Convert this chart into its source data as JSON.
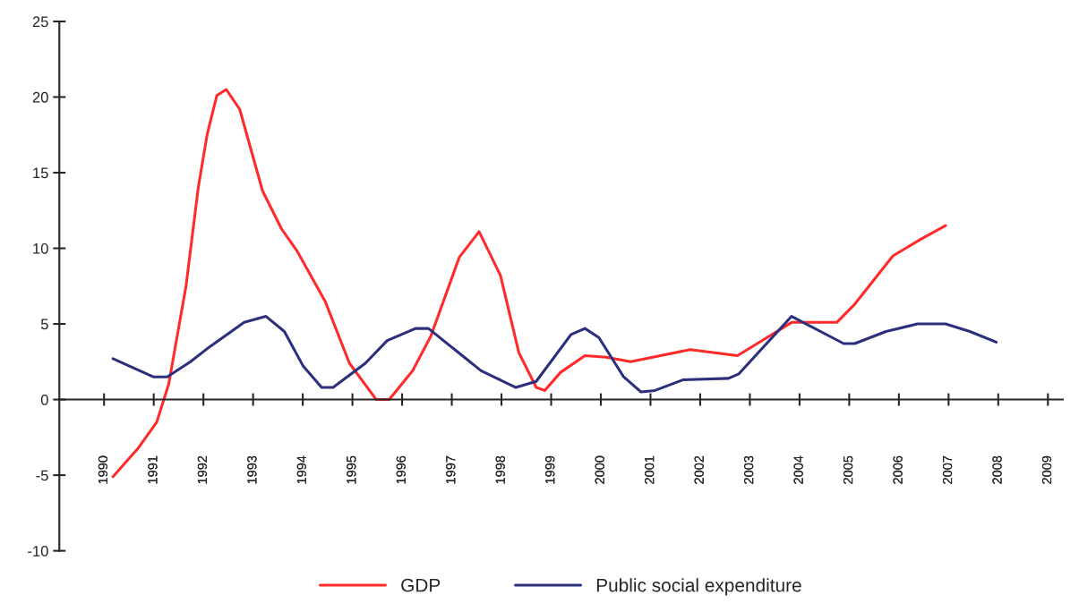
{
  "chart_data": {
    "type": "line",
    "xlim": [
      1989.1,
      2009.3
    ],
    "xticks": [
      1990,
      1991,
      1992,
      1993,
      1994,
      1995,
      1996,
      1997,
      1998,
      1999,
      2000,
      2001,
      2002,
      2003,
      2004,
      2005,
      2006,
      2007,
      2008,
      2009
    ],
    "ylim": [
      -10,
      25
    ],
    "yticks": [
      -10,
      -5,
      0,
      5,
      10,
      15,
      20,
      25
    ],
    "legend": "bottom",
    "marker": "none",
    "line_style": "solid",
    "series": [
      {
        "name": "GDP",
        "color": "#ff2a2a",
        "x": [
          1990.18,
          1990.69,
          1991.06,
          1991.3,
          1991.65,
          1991.9,
          1992.08,
          1992.27,
          1992.46,
          1992.73,
          1993.19,
          1993.57,
          1993.89,
          1994.45,
          1994.94,
          1995.48,
          1995.74,
          1996.21,
          1996.58,
          1997.15,
          1997.55,
          1997.98,
          1998.35,
          1998.7,
          1998.87,
          1999.19,
          1999.68,
          2000.11,
          2000.6,
          2001.8,
          2002.75,
          2003.2,
          2003.84,
          2004.75,
          2005.11,
          2005.88,
          2006.44,
          2006.94
        ],
        "values": [
          -5.1,
          -3.2,
          -1.5,
          1.0,
          7.5,
          14.1,
          17.6,
          20.1,
          20.5,
          19.2,
          13.8,
          11.3,
          9.8,
          6.5,
          2.4,
          0,
          0,
          1.9,
          4.2,
          9.4,
          11.1,
          8.2,
          3.1,
          0.8,
          0.6,
          1.8,
          2.9,
          2.8,
          2.5,
          3.3,
          2.9,
          3.8,
          5.1,
          5.1,
          6.3,
          9.5,
          10.6,
          11.5
        ]
      },
      {
        "name": "Public social expenditure",
        "color": "#2b2f7c",
        "x": [
          1990.18,
          1990.99,
          1991.27,
          1991.74,
          1992.13,
          1992.82,
          1993.26,
          1993.63,
          1994.01,
          1994.38,
          1994.61,
          1995.26,
          1995.7,
          1996.27,
          1996.53,
          1997.1,
          1997.59,
          1998.29,
          1998.7,
          1999.4,
          1999.68,
          1999.96,
          2000.46,
          2000.81,
          2001.09,
          2001.65,
          2002.57,
          2002.78,
          2003.84,
          2004.89,
          2005.11,
          2005.74,
          2006.37,
          2006.94,
          2007.43,
          2007.96
        ],
        "values": [
          2.7,
          1.5,
          1.5,
          2.5,
          3.5,
          5.1,
          5.5,
          4.5,
          2.2,
          0.8,
          0.8,
          2.4,
          3.9,
          4.7,
          4.7,
          3.2,
          1.9,
          0.8,
          1.2,
          4.3,
          4.7,
          4.1,
          1.5,
          0.5,
          0.6,
          1.3,
          1.4,
          1.7,
          5.5,
          3.7,
          3.7,
          4.5,
          5.0,
          5.0,
          4.5,
          3.8
        ]
      }
    ]
  }
}
